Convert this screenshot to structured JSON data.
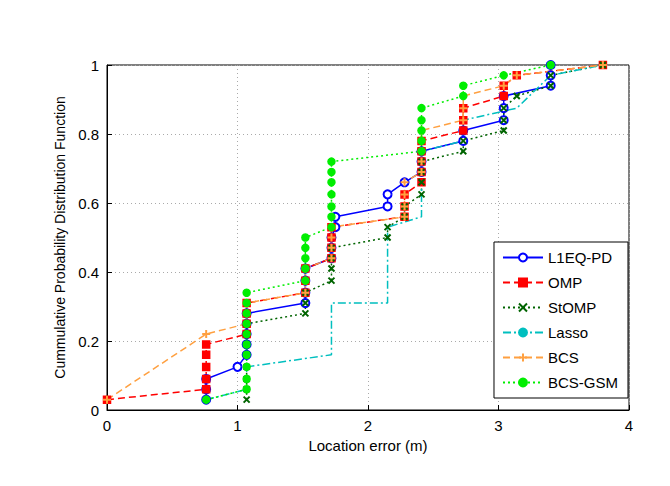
{
  "chart_data": {
    "type": "line",
    "xlabel": "Location error (m)",
    "ylabel": "Cummulative Probability Distribution Function",
    "xlim": [
      0,
      4
    ],
    "xticks": [
      0,
      1,
      2,
      3,
      4
    ],
    "ylim": [
      0,
      1
    ],
    "yticks": [
      0,
      0.2,
      0.4,
      0.6,
      0.8,
      1
    ],
    "grid": true,
    "legend": "lower right",
    "series": [
      {
        "name": "L1EQ-PD",
        "color": "#0000ff",
        "marker": "circle",
        "line_style": "solid",
        "x": [
          0.76,
          0.76,
          0.76,
          1.0,
          1.07,
          1.07,
          1.07,
          1.07,
          1.07,
          1.52,
          1.52,
          1.52,
          1.52,
          1.72,
          1.72,
          1.72,
          1.75,
          1.75,
          2.15,
          2.15,
          2.28,
          2.41,
          2.41,
          2.41,
          2.73,
          2.73,
          3.04,
          3.04,
          3.04,
          3.4,
          3.4,
          3.4
        ],
        "values": [
          0.03,
          0.06,
          0.09,
          0.125,
          0.16,
          0.19,
          0.22,
          0.25,
          0.28,
          0.31,
          0.34,
          0.375,
          0.41,
          0.44,
          0.47,
          0.5,
          0.53,
          0.56,
          0.59,
          0.625,
          0.66,
          0.69,
          0.72,
          0.75,
          0.78,
          0.81,
          0.84,
          0.875,
          0.91,
          0.94,
          0.97,
          1.0
        ]
      },
      {
        "name": "OMP",
        "color": "#ff0000",
        "marker": "square",
        "line_style": "dashed",
        "x": [
          0,
          0.76,
          0.76,
          0.76,
          0.76,
          0.76,
          1.07,
          1.07,
          1.07,
          1.07,
          1.52,
          1.52,
          1.52,
          1.72,
          1.72,
          1.72,
          1.72,
          2.28,
          2.28,
          2.28,
          2.41,
          2.41,
          2.41,
          2.41,
          2.41,
          2.73,
          2.73,
          2.73,
          3.04,
          3.04,
          3.14,
          3.8
        ],
        "values": [
          0.03,
          0.06,
          0.09,
          0.125,
          0.16,
          0.19,
          0.22,
          0.25,
          0.28,
          0.31,
          0.34,
          0.375,
          0.41,
          0.44,
          0.47,
          0.5,
          0.53,
          0.56,
          0.59,
          0.625,
          0.66,
          0.69,
          0.72,
          0.75,
          0.78,
          0.81,
          0.84,
          0.875,
          0.91,
          0.94,
          0.97,
          1.0
        ]
      },
      {
        "name": "StOMP",
        "color": "#006400",
        "marker": "x",
        "line_style": "dotted",
        "x": [
          1.07,
          1.07,
          1.07,
          1.07,
          1.07,
          1.07,
          1.07,
          1.07,
          1.52,
          1.52,
          1.52,
          1.72,
          1.72,
          1.72,
          1.72,
          2.15,
          2.15,
          2.28,
          2.28,
          2.41,
          2.41,
          2.41,
          2.41,
          2.73,
          2.73,
          3.04,
          3.04,
          3.04,
          3.14,
          3.4,
          3.4,
          3.8
        ],
        "values": [
          0.03,
          0.06,
          0.09,
          0.125,
          0.16,
          0.19,
          0.22,
          0.25,
          0.28,
          0.31,
          0.34,
          0.375,
          0.41,
          0.44,
          0.47,
          0.5,
          0.53,
          0.56,
          0.59,
          0.625,
          0.66,
          0.69,
          0.72,
          0.75,
          0.78,
          0.81,
          0.84,
          0.875,
          0.91,
          0.94,
          0.97,
          1.0
        ]
      },
      {
        "name": "Lasso",
        "color": "#00bfbf",
        "marker": "none",
        "line_style": "dashdot",
        "x": [
          0.76,
          1.07,
          1.07,
          1.72,
          1.72,
          2.15,
          2.15,
          2.41,
          2.41,
          2.73,
          2.73,
          3.14,
          3.4,
          3.8
        ],
        "values": [
          0.03,
          0.06,
          0.125,
          0.16,
          0.31,
          0.31,
          0.53,
          0.56,
          0.75,
          0.78,
          0.84,
          0.875,
          0.97,
          1.0
        ]
      },
      {
        "name": "BCS",
        "color": "#ffa040",
        "marker": "plus",
        "line_style": "dashed",
        "x": [
          0,
          0.76,
          1.07,
          1.07,
          1.07,
          1.52,
          1.52,
          1.52,
          1.72,
          1.72,
          1.72,
          1.72,
          2.28,
          2.28,
          2.28,
          2.28,
          2.41,
          2.41,
          2.41,
          2.41,
          2.41,
          2.73,
          2.73,
          2.73,
          3.04,
          3.14,
          3.8
        ],
        "values": [
          0.03,
          0.22,
          0.25,
          0.28,
          0.31,
          0.34,
          0.375,
          0.41,
          0.44,
          0.47,
          0.5,
          0.53,
          0.56,
          0.59,
          0.625,
          0.66,
          0.69,
          0.72,
          0.75,
          0.78,
          0.81,
          0.84,
          0.875,
          0.91,
          0.94,
          0.97,
          1.0
        ]
      },
      {
        "name": "BCS-GSM",
        "color": "#00ee00",
        "marker": "dot",
        "line_style": "dotted",
        "x": [
          0.76,
          1.07,
          1.07,
          1.07,
          1.07,
          1.07,
          1.07,
          1.07,
          1.07,
          1.07,
          1.07,
          1.52,
          1.52,
          1.52,
          1.52,
          1.52,
          1.72,
          1.72,
          1.72,
          1.72,
          1.72,
          1.72,
          1.72,
          2.41,
          2.41,
          2.41,
          2.41,
          2.41,
          2.73,
          2.73,
          3.04,
          3.4
        ],
        "values": [
          0.03,
          0.06,
          0.09,
          0.125,
          0.16,
          0.19,
          0.22,
          0.25,
          0.28,
          0.31,
          0.34,
          0.375,
          0.41,
          0.44,
          0.47,
          0.5,
          0.53,
          0.56,
          0.59,
          0.625,
          0.66,
          0.69,
          0.72,
          0.75,
          0.78,
          0.81,
          0.84,
          0.875,
          0.91,
          0.94,
          0.97,
          1.0
        ]
      }
    ]
  }
}
